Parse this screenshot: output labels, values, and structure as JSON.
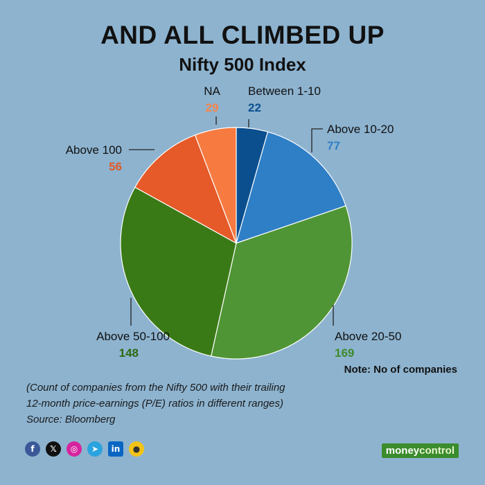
{
  "header": {
    "title": "AND ALL CLIMBED UP",
    "subtitle": "Nifty 500 Index"
  },
  "note": "Note: No of companies",
  "caption": {
    "line1": "(Count of companies from the Nifty 500 with their trailing",
    "line2": "12-month price-earnings (P/E) ratios in different ranges)",
    "source": "Source: Bloomberg"
  },
  "social_icons": [
    "facebook-icon",
    "x-icon",
    "instagram-icon",
    "telegram-icon",
    "linkedin-icon",
    "koo-icon"
  ],
  "brand": {
    "part1": "money",
    "part2": "control"
  },
  "chart_data": {
    "type": "pie",
    "title": "Nifty 500 Index",
    "slices": [
      {
        "label": "Between 1-10",
        "value": 22,
        "color": "#0b4f8f",
        "label_color": "#0b4f8f"
      },
      {
        "label": "Above 10-20",
        "value": 77,
        "color": "#2f7fc6",
        "label_color": "#2f7fc6"
      },
      {
        "label": "Above 20-50",
        "value": 169,
        "color": "#4f9535",
        "label_color": "#3f8a2c"
      },
      {
        "label": "Above 50-100",
        "value": 148,
        "color": "#3a7a16",
        "label_color": "#2d6a12"
      },
      {
        "label": "Above 100",
        "value": 56,
        "color": "#e55a28",
        "label_color": "#e05a28"
      },
      {
        "label": "NA",
        "value": 29,
        "color": "#f77a40",
        "label_color": "#f7854a"
      }
    ]
  }
}
